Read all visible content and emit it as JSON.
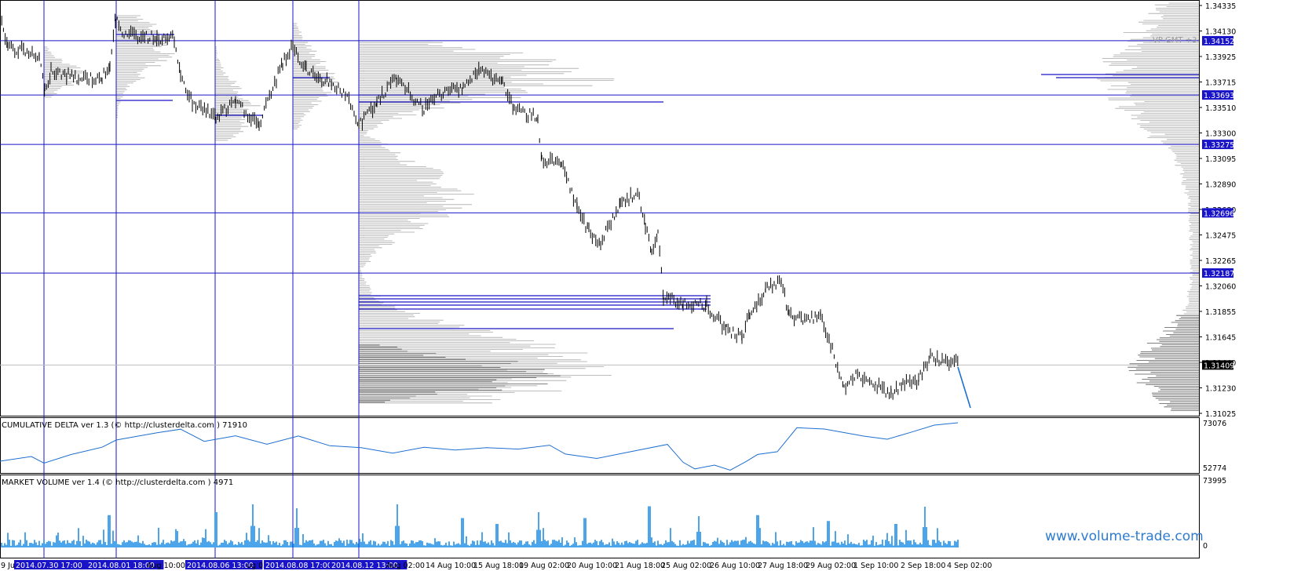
{
  "colors": {
    "level_line": "#1a14c8",
    "tag_bg": "#1a14c8",
    "delta_line": "#1e6fd0",
    "volume_bar": "#1f8ee6",
    "profile": "#a9a9a9",
    "profile_dark": "#555555",
    "price_bar": "#000000",
    "watermark": "#2e7bcf"
  },
  "chart_data": [
    {
      "type": "line",
      "panel": "price",
      "annotation": "VP GMT +3",
      "y_ticks": [
        "1.34335",
        "1.34130",
        "1.33925",
        "1.33715",
        "1.33510",
        "1.33300",
        "1.33095",
        "1.32890",
        "1.32680",
        "1.32475",
        "1.32265",
        "1.32060",
        "1.31855",
        "1.31645",
        "1.31440",
        "1.31230",
        "1.31025"
      ],
      "ylim": [
        1.31,
        1.3445
      ],
      "level_tags": [
        "1.34152",
        "1.33693",
        "1.33275",
        "1.32696",
        "1.32187"
      ],
      "current_price_tag": "1.31409",
      "current_price": 1.31409
    },
    {
      "type": "line",
      "panel": "cumulative_delta",
      "title": "CUMULATIVE DELTA ver 1.3 (© http://clusterdelta.com ) 71910",
      "y_ticks": [
        "73076",
        "52774"
      ]
    },
    {
      "type": "bar",
      "panel": "market_volume",
      "title": "MARKET VOLUME ver 1.4 (© http://clusterdelta.com ) 4971",
      "y_ticks": [
        "73995",
        "0"
      ]
    }
  ],
  "x_axis": {
    "labels": [
      "9 Jul",
      "2014.07.30 17:00",
      "2014.08.01 18:00",
      "Aug 10:00",
      "2014.08.06 13:00",
      "ug 02",
      "2014.08.08 17:00",
      "2014.08.12 13:00",
      "Aug 02:00",
      "14 Aug 10:00",
      "15 Aug 18:00",
      "19 Aug 02:00",
      "20 Aug 10:00",
      "21 Aug 18:00",
      "25 Aug 02:00",
      "26 Aug 10:00",
      "27 Aug 18:00",
      "29 Aug 02:00",
      "1 Sep 10:00",
      "2 Sep 18:00",
      "4 Sep 02:00"
    ]
  },
  "watermark": "www.volume-trade.com"
}
